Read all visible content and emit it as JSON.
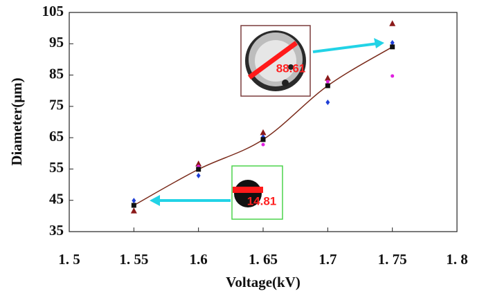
{
  "chart_data": {
    "type": "scatter",
    "x_label": "Voltage(kV)",
    "y_label": "Diameter(μm)",
    "x": [
      1.55,
      1.6,
      1.65,
      1.7,
      1.75
    ],
    "xlim": [
      1.5,
      1.8
    ],
    "xticks": [
      {
        "value": 1.5,
        "label": "1. 5"
      },
      {
        "value": 1.55,
        "label": "1. 55"
      },
      1.6,
      {
        "value": 1.65,
        "label": "1. 65"
      },
      1.7,
      {
        "value": 1.75,
        "label": "1. 75"
      },
      {
        "value": 1.8,
        "label": "1. 8"
      }
    ],
    "ylim": [
      35,
      105
    ],
    "yticks": [
      35,
      45,
      55,
      65,
      75,
      85,
      95,
      105
    ],
    "series": [
      {
        "color": "#8b1a1a",
        "marker": "triangle",
        "values": [
          41.6,
          56.6,
          66.6,
          84.0,
          101.4
        ]
      },
      {
        "color": "#1f3fd6",
        "marker": "diamond",
        "values": [
          44.9,
          52.9,
          65.2,
          76.3,
          95.3
        ]
      },
      {
        "color": "#e020e0",
        "marker": "circle",
        "values": [
          43.4,
          55.8,
          62.8,
          82.9,
          84.7
        ]
      },
      {
        "color": "#111111",
        "marker": "square",
        "line_color": "#7a2a1a",
        "values": [
          43.4,
          54.9,
          64.4,
          81.6,
          94.0
        ]
      }
    ],
    "annotations": [
      {
        "text": "88.61"
      },
      {
        "text": "14.81"
      }
    ]
  }
}
